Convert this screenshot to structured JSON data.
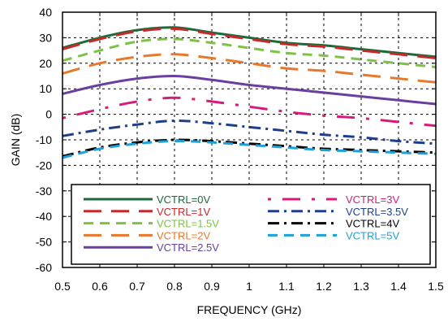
{
  "chart_data": {
    "type": "line",
    "xlabel": "FREQUENCY (GHz)",
    "ylabel": "GAIN (dB)",
    "xlim": [
      0.5,
      1.5
    ],
    "ylim": [
      -60,
      40
    ],
    "xticks": [
      "0.5",
      "0.6",
      "0.7",
      "0.8",
      "0.9",
      "1",
      "1.1",
      "1.2",
      "1.3",
      "1.4",
      "1.5"
    ],
    "yticks": [
      "40",
      "30",
      "20",
      "10",
      "0",
      "-10",
      "-20",
      "-30",
      "-40",
      "-50",
      "-60"
    ],
    "grid": true,
    "legend_position": "bottom-center",
    "x": [
      0.5,
      0.6,
      0.7,
      0.8,
      0.9,
      1.0,
      1.1,
      1.2,
      1.3,
      1.4,
      1.5
    ],
    "series": [
      {
        "name": "VCTRL=0V",
        "color": "#1b6a3a",
        "dash": "solid",
        "values": [
          26,
          30,
          33,
          34,
          32,
          30,
          28,
          27,
          25.5,
          24,
          22.5
        ]
      },
      {
        "name": "VCTRL=1V",
        "color": "#c8282a",
        "dash": "longdash",
        "values": [
          25.5,
          29.5,
          32.5,
          33.5,
          31.5,
          29.5,
          27.5,
          26.5,
          25,
          23.5,
          22
        ]
      },
      {
        "name": "VCTRL=1.5V",
        "color": "#7dc242",
        "dash": "dash",
        "values": [
          21,
          25,
          28.5,
          29.5,
          28,
          26,
          24,
          23,
          21.5,
          20,
          18.5
        ]
      },
      {
        "name": "VCTRL=2V",
        "color": "#e8782a",
        "dash": "longdash",
        "values": [
          16,
          20,
          22.5,
          23.5,
          22,
          20,
          18,
          17,
          15.5,
          14,
          12.5
        ]
      },
      {
        "name": "VCTRL=2.5V",
        "color": "#6a3fa0",
        "dash": "solid",
        "values": [
          8,
          11.5,
          14,
          15,
          13.5,
          11.5,
          10,
          8.5,
          7,
          5.5,
          4
        ]
      },
      {
        "name": "VCTRL=3V",
        "color": "#d81b7b",
        "dash": "dotlong",
        "values": [
          -1.5,
          2,
          5,
          6.5,
          5,
          3,
          1,
          -0.5,
          -1.5,
          -3,
          -4.5
        ]
      },
      {
        "name": "VCTRL=3.5V",
        "color": "#1f3f8a",
        "dash": "dashdot",
        "values": [
          -8.5,
          -6,
          -4,
          -2.5,
          -3.5,
          -5,
          -6.5,
          -8,
          -9,
          -10.5,
          -11.5
        ]
      },
      {
        "name": "VCTRL=4V",
        "color": "#000000",
        "dash": "dashdot",
        "values": [
          -16.5,
          -13,
          -11,
          -10,
          -10.5,
          -11.5,
          -12.5,
          -13.5,
          -14,
          -14.5,
          -15
        ]
      },
      {
        "name": "VCTRL=5V",
        "color": "#1ea1d8",
        "dash": "dash",
        "values": [
          -17,
          -13.5,
          -11.5,
          -10.5,
          -11,
          -12,
          -13,
          -14,
          -14.5,
          -15,
          -15.5
        ]
      }
    ]
  }
}
